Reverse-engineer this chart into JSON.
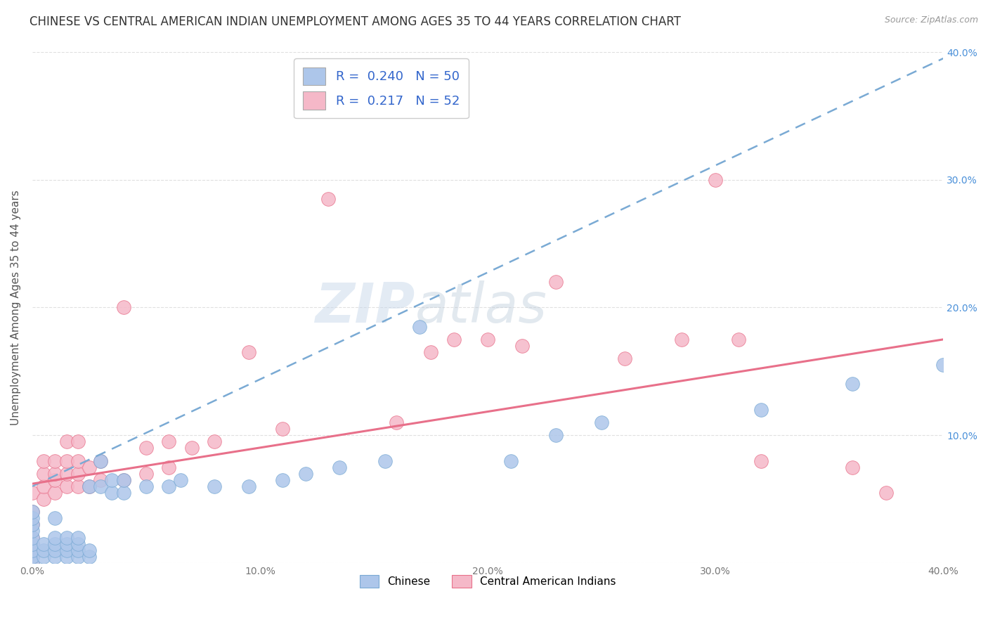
{
  "title": "CHINESE VS CENTRAL AMERICAN INDIAN UNEMPLOYMENT AMONG AGES 35 TO 44 YEARS CORRELATION CHART",
  "source": "Source: ZipAtlas.com",
  "ylabel": "Unemployment Among Ages 35 to 44 years",
  "xlim": [
    0.0,
    0.4
  ],
  "ylim": [
    0.0,
    0.4
  ],
  "xtick_labels": [
    "0.0%",
    "",
    "10.0%",
    "",
    "20.0%",
    "",
    "30.0%",
    "",
    "40.0%"
  ],
  "xtick_vals": [
    0.0,
    0.05,
    0.1,
    0.15,
    0.2,
    0.25,
    0.3,
    0.35,
    0.4
  ],
  "ytick_labels_left": [
    "",
    "",
    "",
    "",
    ""
  ],
  "ytick_labels_right": [
    "",
    "10.0%",
    "20.0%",
    "30.0%",
    "40.0%"
  ],
  "ytick_vals": [
    0.0,
    0.1,
    0.2,
    0.3,
    0.4
  ],
  "legend_entries": [
    {
      "color": "#adc6ea",
      "edge_color": "#7aaad4",
      "label": "Chinese",
      "R": "0.240",
      "N": "50"
    },
    {
      "color": "#f5b8c8",
      "edge_color": "#e8708a",
      "label": "Central American Indians",
      "R": "0.217",
      "N": "52"
    }
  ],
  "watermark_zip": "ZIP",
  "watermark_atlas": "atlas",
  "chinese_scatter_x": [
    0.0,
    0.0,
    0.0,
    0.0,
    0.0,
    0.0,
    0.0,
    0.0,
    0.0,
    0.005,
    0.005,
    0.005,
    0.01,
    0.01,
    0.01,
    0.01,
    0.01,
    0.015,
    0.015,
    0.015,
    0.015,
    0.02,
    0.02,
    0.02,
    0.02,
    0.025,
    0.025,
    0.025,
    0.03,
    0.03,
    0.035,
    0.035,
    0.04,
    0.04,
    0.05,
    0.06,
    0.065,
    0.08,
    0.095,
    0.11,
    0.12,
    0.135,
    0.155,
    0.17,
    0.21,
    0.23,
    0.25,
    0.32,
    0.36,
    0.4
  ],
  "chinese_scatter_y": [
    0.0,
    0.005,
    0.01,
    0.015,
    0.02,
    0.025,
    0.03,
    0.035,
    0.04,
    0.005,
    0.01,
    0.015,
    0.005,
    0.01,
    0.015,
    0.02,
    0.035,
    0.005,
    0.01,
    0.015,
    0.02,
    0.005,
    0.01,
    0.015,
    0.02,
    0.005,
    0.01,
    0.06,
    0.06,
    0.08,
    0.055,
    0.065,
    0.055,
    0.065,
    0.06,
    0.06,
    0.065,
    0.06,
    0.06,
    0.065,
    0.07,
    0.075,
    0.08,
    0.185,
    0.08,
    0.1,
    0.11,
    0.12,
    0.14,
    0.155
  ],
  "cam_scatter_x": [
    0.0,
    0.0,
    0.0,
    0.0,
    0.0,
    0.0,
    0.0,
    0.0,
    0.005,
    0.005,
    0.005,
    0.005,
    0.01,
    0.01,
    0.01,
    0.01,
    0.015,
    0.015,
    0.015,
    0.015,
    0.02,
    0.02,
    0.02,
    0.02,
    0.025,
    0.025,
    0.03,
    0.03,
    0.04,
    0.04,
    0.05,
    0.05,
    0.06,
    0.06,
    0.07,
    0.08,
    0.095,
    0.11,
    0.13,
    0.16,
    0.175,
    0.185,
    0.2,
    0.215,
    0.23,
    0.26,
    0.285,
    0.3,
    0.31,
    0.32,
    0.36,
    0.375
  ],
  "cam_scatter_y": [
    0.0,
    0.005,
    0.01,
    0.015,
    0.02,
    0.03,
    0.04,
    0.055,
    0.05,
    0.06,
    0.07,
    0.08,
    0.055,
    0.065,
    0.07,
    0.08,
    0.06,
    0.07,
    0.08,
    0.095,
    0.06,
    0.07,
    0.08,
    0.095,
    0.06,
    0.075,
    0.065,
    0.08,
    0.065,
    0.2,
    0.07,
    0.09,
    0.075,
    0.095,
    0.09,
    0.095,
    0.165,
    0.105,
    0.285,
    0.11,
    0.165,
    0.175,
    0.175,
    0.17,
    0.22,
    0.16,
    0.175,
    0.3,
    0.175,
    0.08,
    0.075,
    0.055
  ],
  "chinese_line_color": "#7aaad4",
  "cam_line_color": "#e8708a",
  "scatter_chinese_color": "#adc6ea",
  "scatter_cam_color": "#f5b8c8",
  "background_color": "#ffffff",
  "grid_color": "#e0e0e0",
  "title_fontsize": 12,
  "axis_label_fontsize": 11,
  "tick_fontsize": 10,
  "legend_text_color": "#3366cc"
}
